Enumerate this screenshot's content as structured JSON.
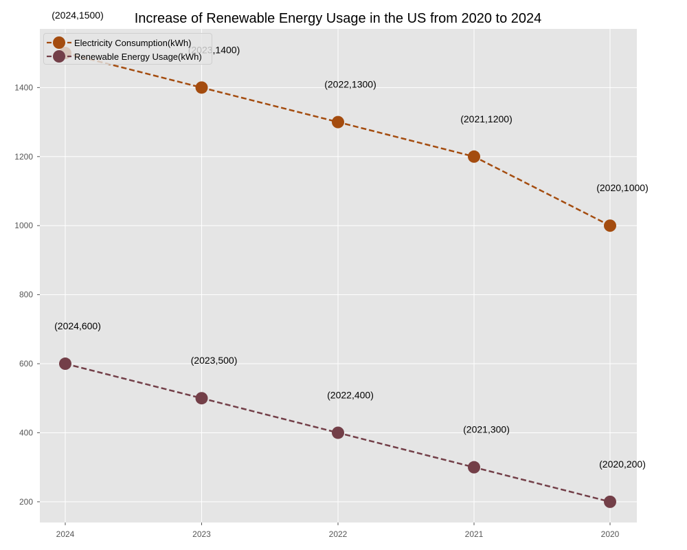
{
  "chart_data": {
    "type": "line",
    "title": "Increase of Renewable Energy Usage in the US from 2020 to 2024",
    "xlabel": "",
    "ylabel": "",
    "categories": [
      "2024",
      "2023",
      "2022",
      "2021",
      "2020"
    ],
    "ylim": [
      140,
      1570
    ],
    "yticks": [
      200,
      400,
      600,
      800,
      1000,
      1200,
      1400
    ],
    "grid": true,
    "legend_position": "top-left",
    "series": [
      {
        "name": "Electricity Consumption(kWh)",
        "color": "#a44c0f",
        "values": [
          1500,
          1400,
          1300,
          1200,
          1000
        ],
        "labels": [
          "(2024,1500)",
          "(2023,1400)",
          "(2022,1300)",
          "(2021,1200)",
          "(2020,1000)"
        ]
      },
      {
        "name": "Renewable Energy Usage(kWh)",
        "color": "#733f48",
        "values": [
          600,
          500,
          400,
          300,
          200
        ],
        "labels": [
          "(2024,600)",
          "(2023,500)",
          "(2022,400)",
          "(2021,300)",
          "(2020,200)"
        ]
      }
    ]
  }
}
